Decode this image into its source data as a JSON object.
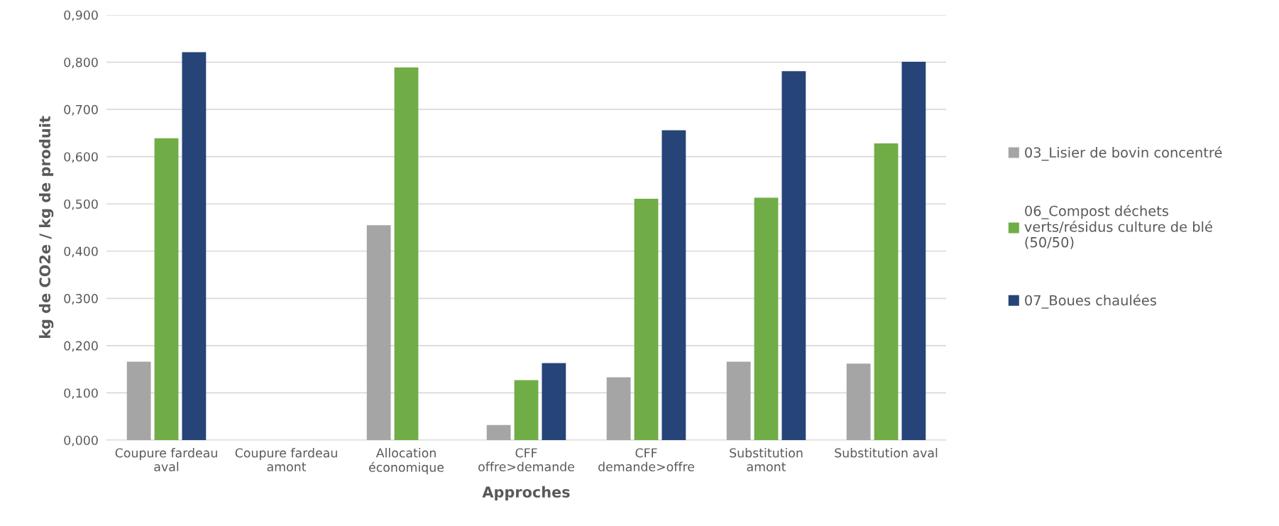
{
  "chart_data": {
    "type": "bar",
    "xlabel": "Approches",
    "ylabel": "kg de CO2e / kg de produit",
    "categories": [
      "Coupure fardeau\naval",
      "Coupure fardeau\namont",
      "Allocation\néconomique",
      "CFF\noffre>demande",
      "CFF\ndemande>offre",
      "Substitution\namont",
      "Substitution aval"
    ],
    "series": [
      {
        "name": "03_Lisier de bovin concentré",
        "color": "#a5a5a5",
        "values": [
          0.166,
          null,
          0.455,
          0.032,
          0.133,
          0.166,
          0.162
        ]
      },
      {
        "name": "06_Compost déchets\nverts/résidus culture de blé\n(50/50)",
        "color": "#70ad47",
        "values": [
          0.639,
          null,
          0.789,
          0.127,
          0.511,
          0.513,
          0.628
        ]
      },
      {
        "name": "07_Boues chaulées",
        "color": "#264478",
        "values": [
          0.821,
          null,
          null,
          0.163,
          0.656,
          0.781,
          0.801
        ]
      }
    ],
    "ylim": [
      0,
      0.9
    ],
    "yticks": [
      {
        "value": 0,
        "label": "0,000"
      },
      {
        "value": 0.1,
        "label": "0,100"
      },
      {
        "value": 0.2,
        "label": "0,200"
      },
      {
        "value": 0.3,
        "label": "0,300"
      },
      {
        "value": 0.4,
        "label": "0,400"
      },
      {
        "value": 0.5,
        "label": "0,500"
      },
      {
        "value": 0.6,
        "label": "0,600"
      },
      {
        "value": 0.7,
        "label": "0,700"
      },
      {
        "value": 0.8,
        "label": "0,800"
      },
      {
        "value": 0.9,
        "label": "0,900"
      }
    ],
    "grid": "y",
    "legend": "right"
  }
}
